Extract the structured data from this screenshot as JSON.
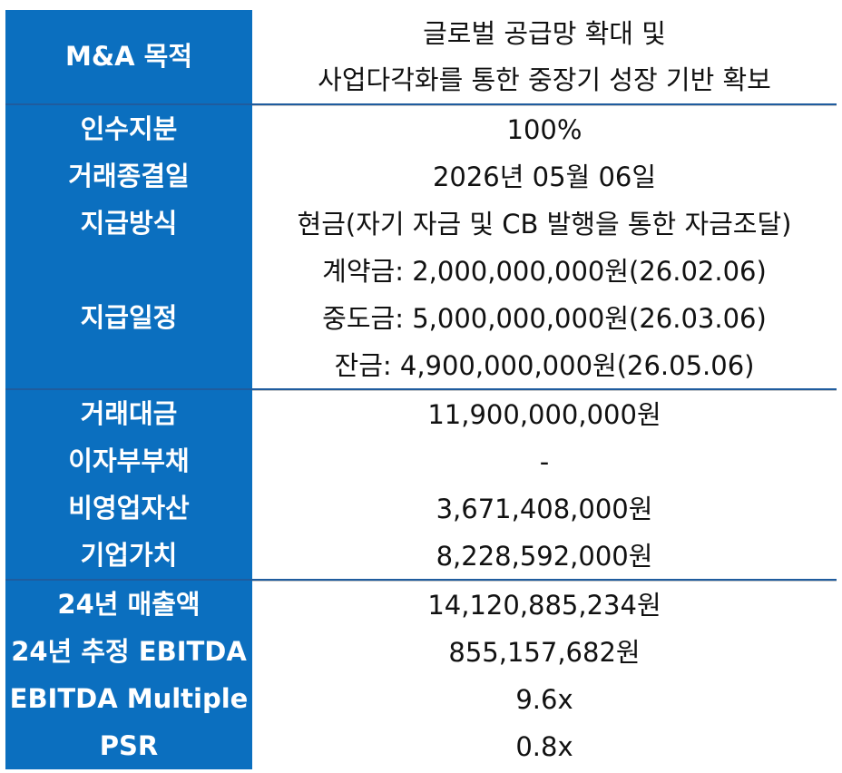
{
  "rows": {
    "purpose": {
      "label": "M&A 목적",
      "value_line1": "글로벌 공급망 확대 및",
      "value_line2": "사업다각화를 통한 중장기 성장 기반 확보"
    },
    "stake": {
      "label": "인수지분",
      "value": "100%"
    },
    "closing_date": {
      "label": "거래종결일",
      "value": "2026년 05월 06일"
    },
    "payment_method": {
      "label": "지급방식",
      "value": "현금(자기 자금 및 CB 발행을 통한 자금조달)"
    },
    "payment_schedule": {
      "label": "지급일정",
      "contract": "계약금: 2,000,000,000원(26.02.06)",
      "interim": "중도금: 5,000,000,000원(26.03.06)",
      "balance": "잔금: 4,900,000,000원(26.05.06)"
    },
    "deal_value": {
      "label": "거래대금",
      "value": "11,900,000,000원"
    },
    "interest_debt": {
      "label": "이자부부채",
      "value": "-"
    },
    "non_operating_assets": {
      "label": "비영업자산",
      "value": "3,671,408,000원"
    },
    "enterprise_value": {
      "label": "기업가치",
      "value": "8,228,592,000원"
    },
    "revenue_24": {
      "label": "24년 매출액",
      "value": "14,120,885,234원"
    },
    "ebitda_24": {
      "label": "24년 추정 EBITDA",
      "value": "855,157,682원"
    },
    "ebitda_multiple": {
      "label": "EBITDA Multiple",
      "value": "9.6x"
    },
    "psr": {
      "label": "PSR",
      "value": "0.8x"
    }
  },
  "colors": {
    "label_bg": "#0b6fbf",
    "label_text": "#ffffff",
    "divider": "#1f5c9e"
  }
}
